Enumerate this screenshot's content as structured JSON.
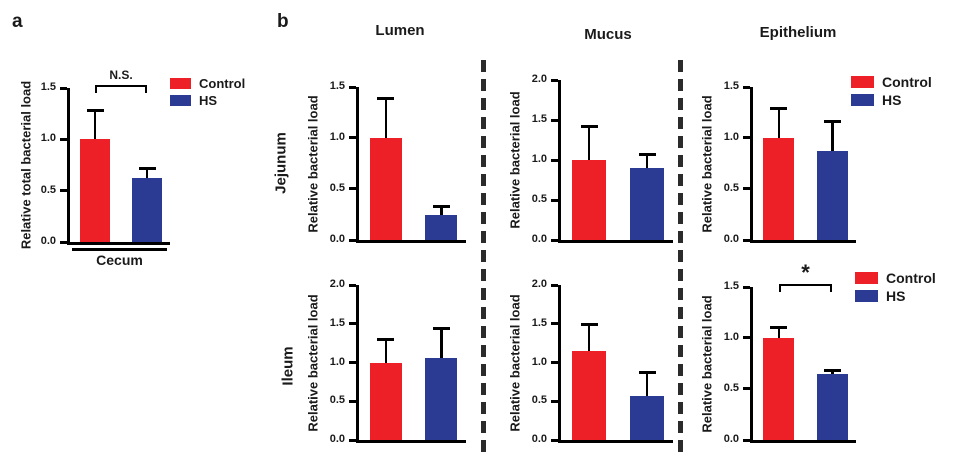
{
  "colors": {
    "control": "#EC2026",
    "hs": "#2B3A92",
    "axis": "#000000",
    "dash": "#2B2B2B"
  },
  "panels": {
    "a_label": "a",
    "b_label": "b"
  },
  "legend": {
    "control": "Control",
    "hs": "HS"
  },
  "panel_b": {
    "column_headers": [
      "Lumen",
      "Mucus",
      "Epithelium"
    ],
    "row_labels": [
      "Jejunum",
      "Ileum"
    ]
  },
  "chart_data": [
    {
      "id": "cecum",
      "type": "bar",
      "panel": "a",
      "title": "",
      "xlabel": "Cecum",
      "ylabel": "Relative total bacterial load",
      "ylim": [
        0,
        1.5
      ],
      "yticks": [
        0,
        0.5,
        1.0,
        1.5
      ],
      "categories": [
        "Control",
        "HS"
      ],
      "values": [
        1.0,
        0.62
      ],
      "errors": [
        0.3,
        0.11
      ],
      "significance": "N.S."
    },
    {
      "id": "jejunum-lumen",
      "type": "bar",
      "panel": "b",
      "row": "Jejunum",
      "col": "Lumen",
      "title": "",
      "xlabel": "",
      "ylabel": "Relative bacterial load",
      "ylim": [
        0,
        1.5
      ],
      "yticks": [
        0,
        0.5,
        1.0,
        1.5
      ],
      "categories": [
        "Control",
        "HS"
      ],
      "values": [
        1.0,
        0.25
      ],
      "errors": [
        0.4,
        0.09
      ],
      "significance": ""
    },
    {
      "id": "jejunum-mucus",
      "type": "bar",
      "panel": "b",
      "row": "Jejunum",
      "col": "Mucus",
      "title": "",
      "xlabel": "",
      "ylabel": "Relative bacterial load",
      "ylim": [
        0,
        2.0
      ],
      "yticks": [
        0,
        0.5,
        1.0,
        1.5,
        2.0
      ],
      "categories": [
        "Control",
        "HS"
      ],
      "values": [
        1.0,
        0.9
      ],
      "errors": [
        0.44,
        0.19
      ],
      "significance": ""
    },
    {
      "id": "jejunum-epithelium",
      "type": "bar",
      "panel": "b",
      "row": "Jejunum",
      "col": "Epithelium",
      "title": "",
      "xlabel": "",
      "ylabel": "Relative bacterial load",
      "ylim": [
        0,
        1.5
      ],
      "yticks": [
        0,
        0.5,
        1.0,
        1.5
      ],
      "categories": [
        "Control",
        "HS"
      ],
      "values": [
        1.0,
        0.87
      ],
      "errors": [
        0.3,
        0.31
      ],
      "significance": ""
    },
    {
      "id": "ileum-lumen",
      "type": "bar",
      "panel": "b",
      "row": "Ileum",
      "col": "Lumen",
      "title": "",
      "xlabel": "",
      "ylabel": "Relative bacterial load",
      "ylim": [
        0,
        2.0
      ],
      "yticks": [
        0,
        0.5,
        1.0,
        1.5,
        2.0
      ],
      "categories": [
        "Control",
        "HS"
      ],
      "values": [
        1.0,
        1.06
      ],
      "errors": [
        0.32,
        0.4
      ],
      "significance": ""
    },
    {
      "id": "ileum-mucus",
      "type": "bar",
      "panel": "b",
      "row": "Ileum",
      "col": "Mucus",
      "title": "",
      "xlabel": "",
      "ylabel": "Relative bacterial load",
      "ylim": [
        0,
        2.0
      ],
      "yticks": [
        0,
        0.5,
        1.0,
        1.5,
        2.0
      ],
      "categories": [
        "Control",
        "HS"
      ],
      "values": [
        1.15,
        0.57
      ],
      "errors": [
        0.36,
        0.32
      ],
      "significance": ""
    },
    {
      "id": "ileum-epithelium",
      "type": "bar",
      "panel": "b",
      "row": "Ileum",
      "col": "Epithelium",
      "title": "",
      "xlabel": "",
      "ylabel": "Relative bacterial load",
      "ylim": [
        0,
        1.5
      ],
      "yticks": [
        0,
        0.5,
        1.0,
        1.5
      ],
      "categories": [
        "Control",
        "HS"
      ],
      "values": [
        1.0,
        0.65
      ],
      "errors": [
        0.12,
        0.05
      ],
      "significance": "*"
    }
  ]
}
